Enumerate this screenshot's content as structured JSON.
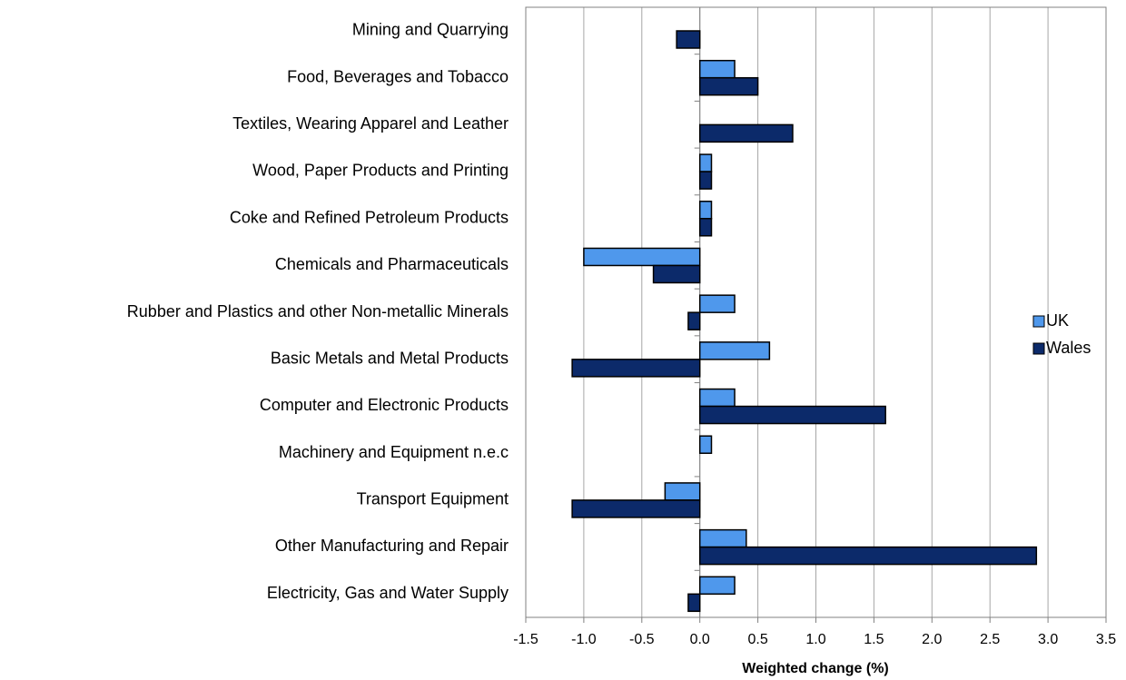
{
  "chart_data": {
    "type": "hbar",
    "x_label": "Weighted change (%)",
    "categories": [
      "Mining and Quarrying",
      "Food, Beverages and Tobacco",
      "Textiles, Wearing Apparel and Leather",
      "Wood, Paper Products and Printing",
      "Coke and Refined Petroleum Products",
      "Chemicals and Pharmaceuticals",
      "Rubber and Plastics and other Non-metallic Minerals",
      "Basic Metals and Metal Products",
      "Computer and Electronic Products",
      "Machinery and Equipment n.e.c",
      "Transport Equipment",
      "Other Manufacturing and Repair",
      "Electricity, Gas and Water Supply"
    ],
    "series": [
      {
        "name": "UK",
        "color": "#4f98ec",
        "values": [
          0,
          0.3,
          0,
          0.1,
          0.1,
          -1.0,
          0.3,
          0.6,
          0.3,
          0.1,
          -0.3,
          0.4,
          0.3
        ]
      },
      {
        "name": "Wales",
        "color": "#0c2a6a",
        "values": [
          -0.2,
          0.5,
          0.8,
          0.1,
          0.1,
          -0.4,
          -0.1,
          -1.1,
          1.6,
          0,
          -1.1,
          2.9,
          -0.1
        ]
      }
    ],
    "xlim": [
      -1.5,
      3.5
    ],
    "xticks": [
      -1.5,
      {
        "value": -1.0,
        "label": "-1.0"
      },
      -0.5,
      {
        "value": 0,
        "label": "0.0"
      },
      0.5,
      {
        "value": 1,
        "label": "1.0"
      },
      1.5,
      {
        "value": 2,
        "label": "2.0"
      },
      2.5,
      {
        "value": 3,
        "label": "3.0"
      },
      3.5
    ],
    "grid": true,
    "legend": "right"
  }
}
